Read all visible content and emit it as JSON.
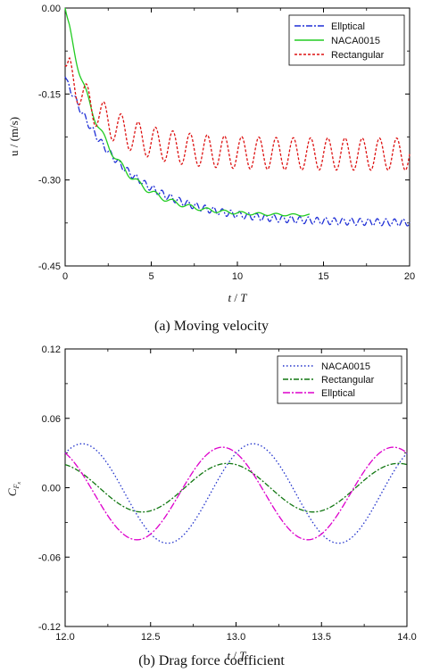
{
  "chart_data": [
    {
      "type": "line",
      "title": "",
      "caption_letter": "(a)",
      "caption_text": "Moving velocity",
      "xlabel_italic": "t",
      "xlabel_rest": " / ",
      "xlabel_italic2": "T",
      "ylabel": "u / (m/s)",
      "xlim": [
        0,
        20
      ],
      "ylim": [
        -0.45,
        0
      ],
      "xticks": [
        0,
        5,
        10,
        15,
        20
      ],
      "yticks": [
        0.0,
        -0.15,
        -0.3,
        -0.45
      ],
      "xtick_labels": [
        "0",
        "5",
        "10",
        "15",
        "20"
      ],
      "ytick_labels": [
        "0.00",
        "-0.15",
        "-0.30",
        "-0.45"
      ],
      "grid": false,
      "legend": "top-right",
      "series": [
        {
          "name": "Ellptical",
          "color": "#1f2fd6",
          "dash": "7,2,2,2",
          "params": {
            "v0": -0.12,
            "vf": -0.375,
            "tau": 3.5,
            "amp": 0.006,
            "period": 0.5,
            "drift": 0
          }
        },
        {
          "name": "NACA0015",
          "color": "#22cc22",
          "dash": "",
          "params": {
            "v0": 0.0,
            "vf": -0.362,
            "tau": 2.3,
            "amp": 0.008,
            "period": 1.0,
            "drift": 0,
            "tmax": 14.2
          }
        },
        {
          "name": "Rectangular",
          "color": "#dd1111",
          "dash": "3,2",
          "params": {
            "v0": -0.1,
            "vf": -0.255,
            "tau": 2.5,
            "amp": 0.028,
            "period": 1.0,
            "drift": 0
          }
        }
      ]
    },
    {
      "type": "line",
      "title": "",
      "caption_letter": "(b)",
      "caption_text": "Drag force coefficient",
      "xlabel_italic": "t",
      "xlabel_rest": " / ",
      "xlabel_italic2": "T",
      "ylabel_main": "C",
      "ylabel_sub": "F",
      "ylabel_subsub": "x",
      "xlim": [
        12.0,
        14.0
      ],
      "ylim": [
        -0.12,
        0.12
      ],
      "xticks": [
        12.0,
        12.5,
        13.0,
        13.5,
        14.0
      ],
      "yticks": [
        0.12,
        0.06,
        0.0,
        -0.06,
        -0.12
      ],
      "xtick_labels": [
        "12.0",
        "12.5",
        "13.0",
        "13.5",
        "14.0"
      ],
      "ytick_labels": [
        "0.12",
        "0.06",
        "0.00",
        "-0.06",
        "-0.12"
      ],
      "grid": false,
      "legend": "top-right",
      "series": [
        {
          "name": "NACA0015",
          "color": "#2233cc",
          "dash": "1.5,2.5",
          "params": {
            "mean": -0.005,
            "amp": 0.043,
            "period": 1.0,
            "phase_peak": 12.1
          }
        },
        {
          "name": "Rectangular",
          "color": "#117711",
          "dash": "6,2,2,2",
          "params": {
            "mean": 0.0,
            "amp": 0.021,
            "period": 1.0,
            "phase_peak": 12.95
          }
        },
        {
          "name": "Ellptical",
          "color": "#dd00cc",
          "dash": "8,2,2,2",
          "params": {
            "mean": -0.005,
            "amp": 0.04,
            "period": 1.0,
            "phase_peak": 12.92
          }
        }
      ]
    }
  ]
}
